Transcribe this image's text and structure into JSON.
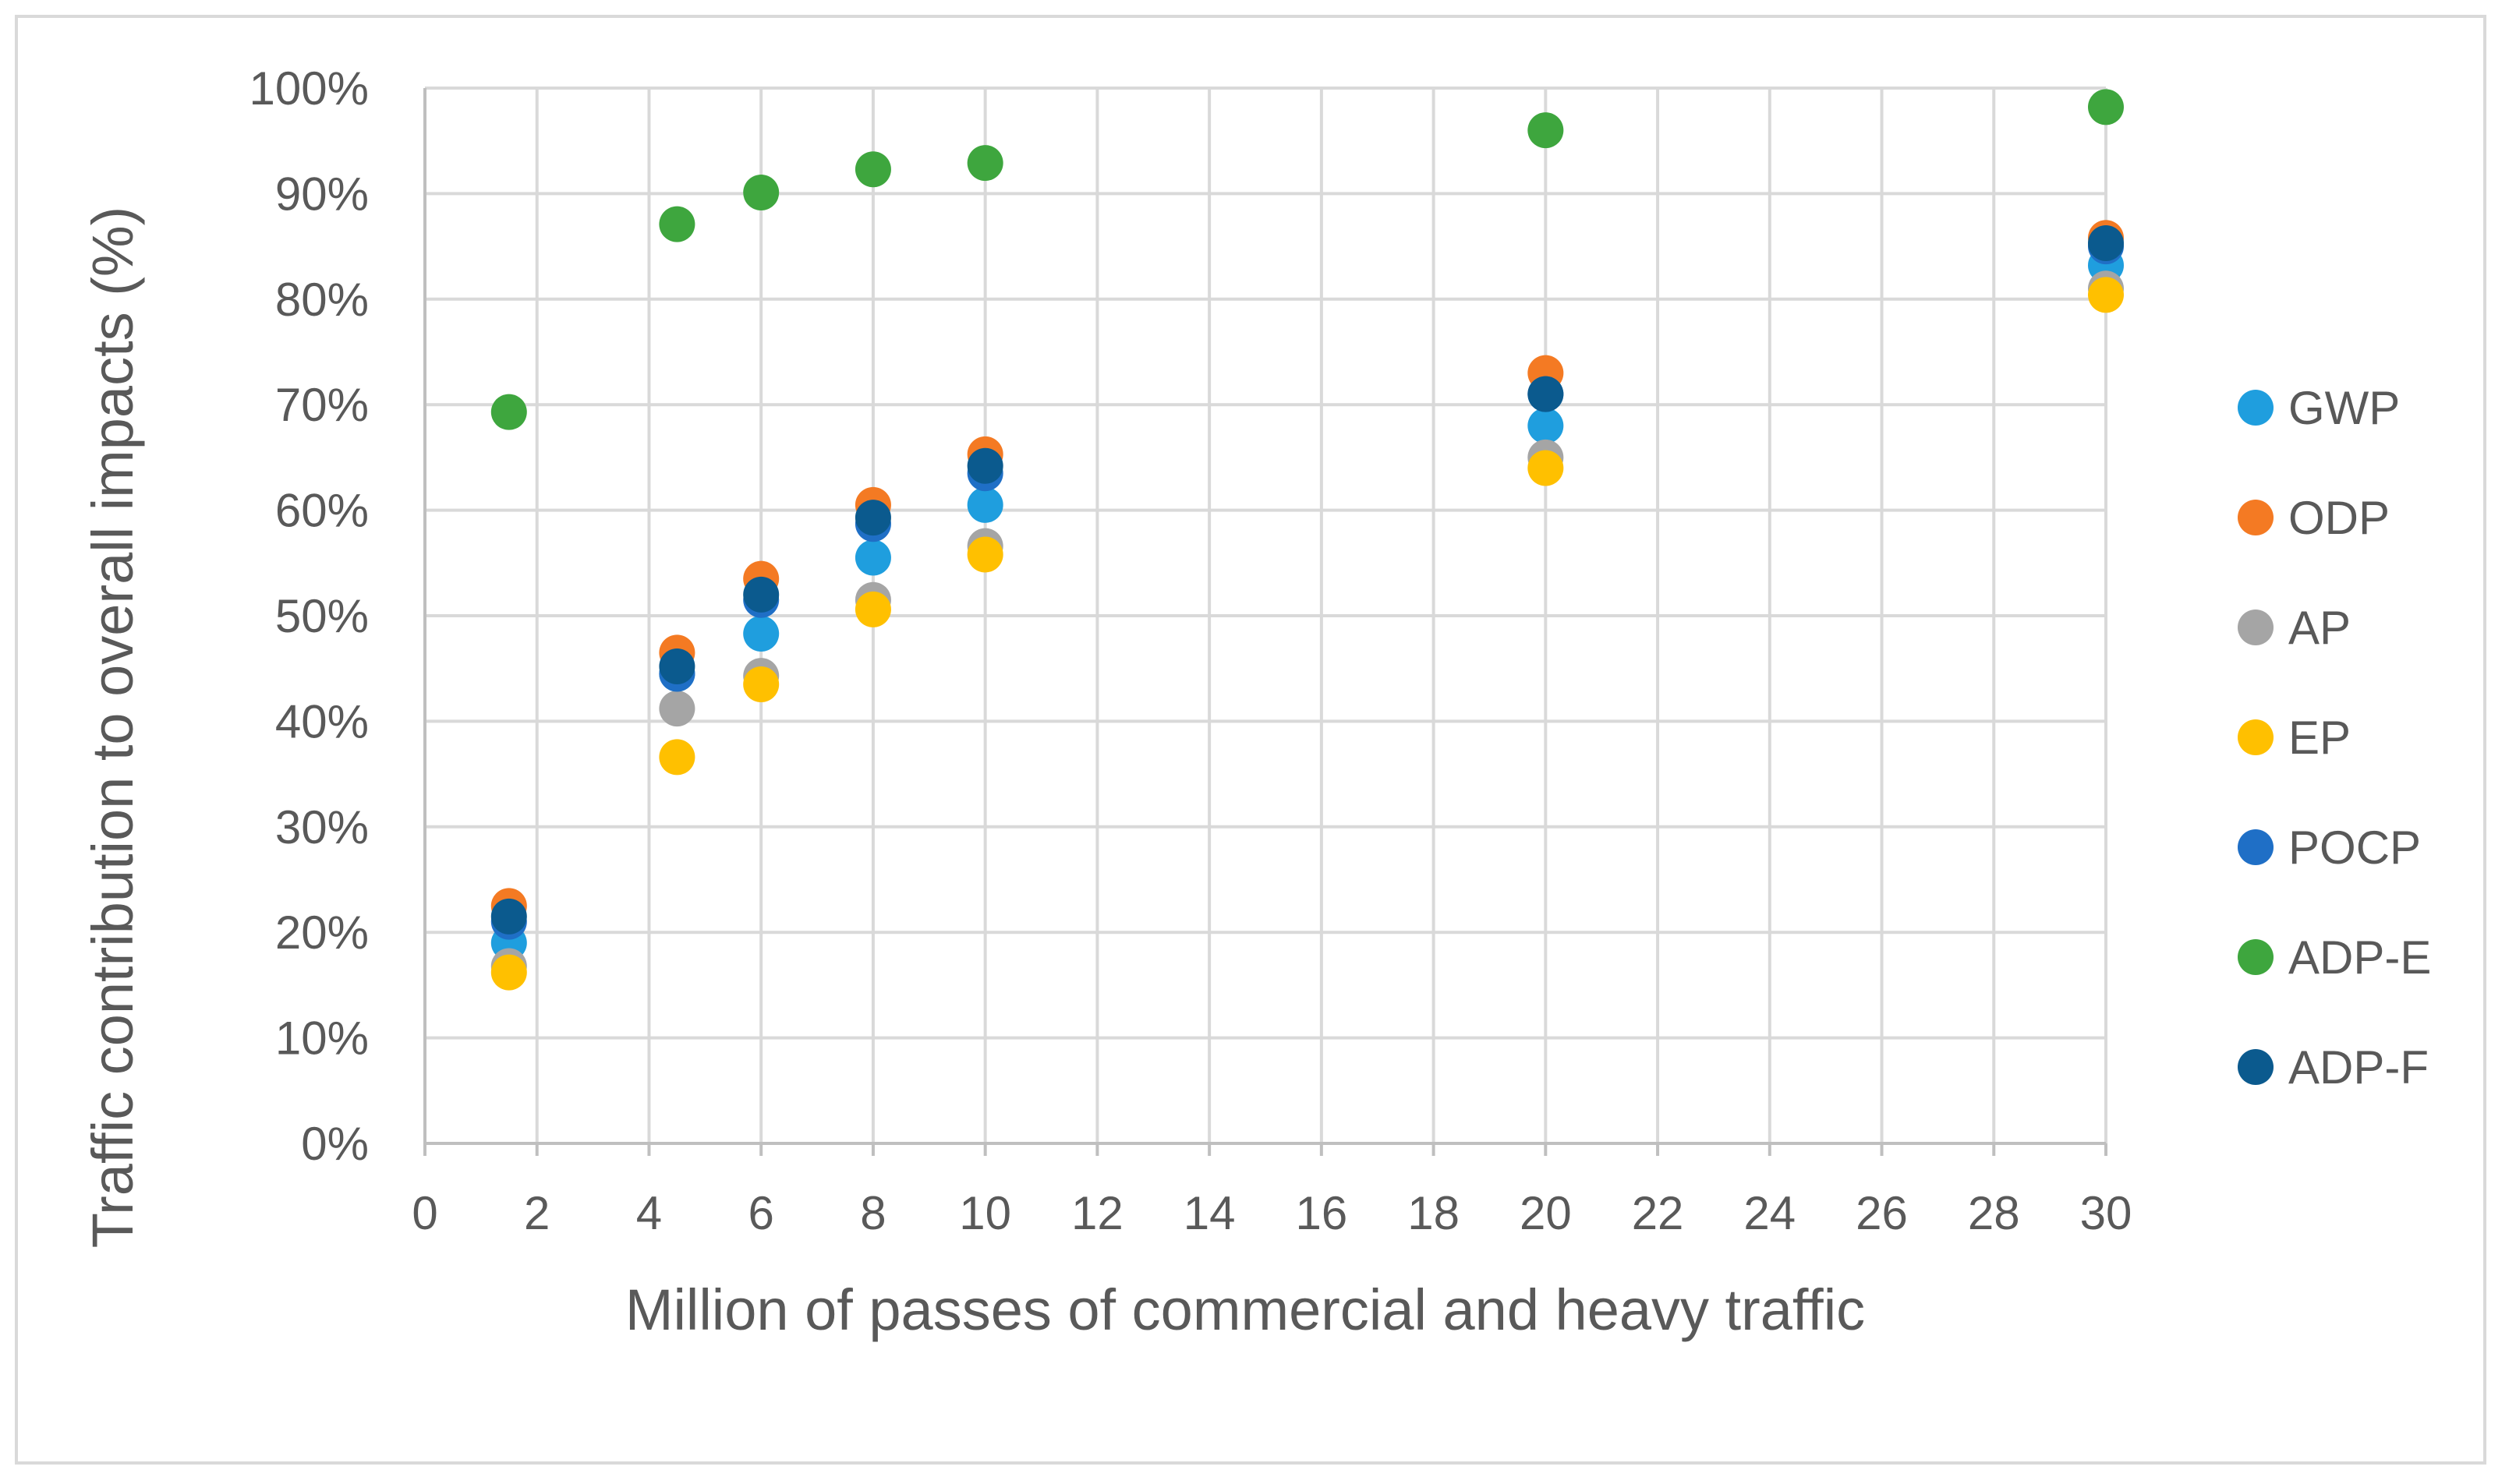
{
  "chart_data": {
    "type": "scatter",
    "title": "",
    "xlabel": "Million of passes of commercial and heavy traffic",
    "ylabel": "Traffic contribution to overall impacts (%)",
    "xlim": [
      0,
      30
    ],
    "ylim": [
      0,
      100
    ],
    "x_ticks": [
      0,
      2,
      4,
      6,
      8,
      10,
      12,
      14,
      16,
      18,
      20,
      22,
      24,
      26,
      28,
      30
    ],
    "x_tick_labels": [
      "0",
      "2",
      "4",
      "6",
      "8",
      "10",
      "12",
      "14",
      "16",
      "18",
      "20",
      "22",
      "24",
      "26",
      "28",
      "30"
    ],
    "y_ticks": [
      0,
      10,
      20,
      30,
      40,
      50,
      60,
      70,
      80,
      90,
      100
    ],
    "y_tick_labels": [
      "0%",
      "10%",
      "20%",
      "30%",
      "40%",
      "50%",
      "60%",
      "70%",
      "80%",
      "90%",
      "100%"
    ],
    "grid": true,
    "legend_position": "right",
    "x": [
      1.5,
      4.5,
      6,
      8,
      10,
      20,
      30
    ],
    "series": [
      {
        "name": "GWP",
        "color": "#1f9ede",
        "values": [
          19,
          44.5,
          48.3,
          55.5,
          60.5,
          68,
          83.2
        ]
      },
      {
        "name": "ODP",
        "color": "#f47a23",
        "values": [
          22.5,
          46.5,
          53.5,
          60.5,
          65.3,
          73,
          85.8
        ]
      },
      {
        "name": "AP",
        "color": "#a5a5a5",
        "values": [
          16.8,
          41.2,
          44.3,
          51.5,
          56.6,
          65,
          81
        ]
      },
      {
        "name": "EP",
        "color": "#ffc000",
        "values": [
          16.2,
          36.6,
          43.5,
          50.6,
          55.8,
          64,
          80.4
        ]
      },
      {
        "name": "POCP",
        "color": "#1f6fc6",
        "values": [
          21,
          44.5,
          51.5,
          58.7,
          63.5,
          71,
          85
        ]
      },
      {
        "name": "ADP-E",
        "color": "#3ea63e",
        "values": [
          69.3,
          87.1,
          90.1,
          92.3,
          92.9,
          96,
          98.2
        ]
      },
      {
        "name": "ADP-F",
        "color": "#0b5a8e",
        "values": [
          21.5,
          45.2,
          52,
          59.3,
          64.2,
          71,
          85.3
        ]
      }
    ]
  }
}
